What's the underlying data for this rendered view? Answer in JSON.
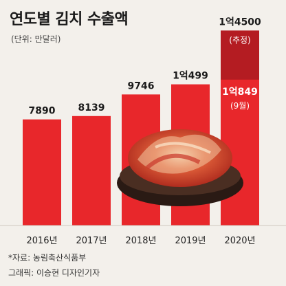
{
  "header": {
    "title": "연도별 김치 수출액",
    "unit": "(단위: 만달러)"
  },
  "footer": {
    "source": "*자료: 농림축산식품부",
    "credit": "그래픽: 이승현 디자인기자"
  },
  "colors": {
    "bar": "#e8272b",
    "bar_projection": "#b41c22",
    "background": "#f3f0eb"
  },
  "chart_data": {
    "type": "bar",
    "title": "연도별 김치 수출액",
    "ylabel": "(단위: 만달러)",
    "categories": [
      "2016년",
      "2017년",
      "2018년",
      "2019년",
      "2020년"
    ],
    "series": [
      {
        "name": "",
        "values": [
          7890,
          8139,
          9746,
          10499,
          10849
        ]
      }
    ],
    "value_labels": [
      "7890",
      "8139",
      "9746",
      "1억499",
      "1억849"
    ],
    "projection": {
      "category": "2020년",
      "value": 14500,
      "label": "1억4500",
      "note": "(추정)"
    },
    "partial_note": "(9월)",
    "ylim": [
      0,
      15000
    ]
  }
}
